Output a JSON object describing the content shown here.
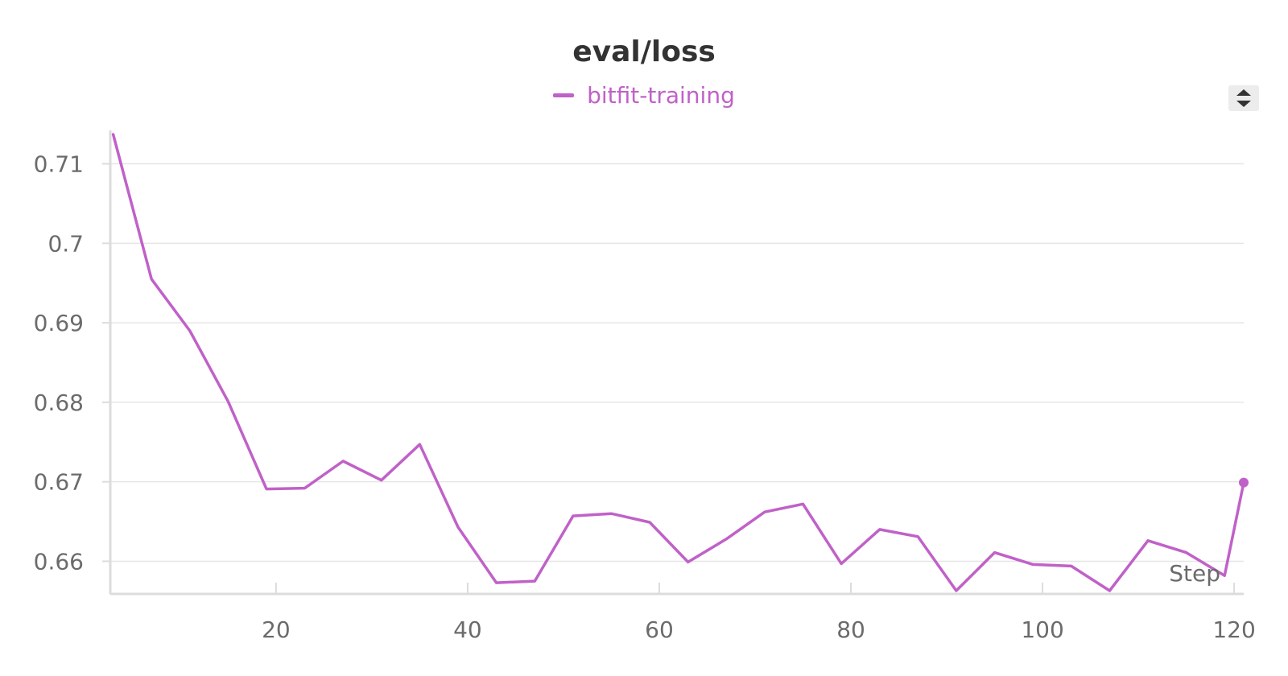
{
  "chart_data": {
    "type": "line",
    "title": "eval/loss",
    "xlabel": "Step",
    "ylabel": "",
    "xlim": [
      2.7,
      121
    ],
    "ylim": [
      0.6563,
      0.7137
    ],
    "x_ticks": [
      20,
      40,
      60,
      80,
      100,
      120
    ],
    "y_ticks": [
      0.66,
      0.67,
      0.68,
      0.69,
      0.7,
      0.71
    ],
    "grid": true,
    "legend": "top-center",
    "series": [
      {
        "name": "bitfit-training",
        "color": "#c061c8",
        "x": [
          3,
          7,
          11,
          15,
          19,
          23,
          27,
          31,
          35,
          39,
          43,
          47,
          51,
          55,
          59,
          63,
          67,
          71,
          75,
          79,
          83,
          87,
          91,
          95,
          99,
          103,
          107,
          111,
          115,
          119,
          121
        ],
        "y": [
          0.7137,
          0.6955,
          0.689,
          0.6801,
          0.6691,
          0.6692,
          0.6726,
          0.6702,
          0.6747,
          0.6643,
          0.6573,
          0.6575,
          0.6657,
          0.666,
          0.6649,
          0.6599,
          0.6628,
          0.6662,
          0.6672,
          0.6597,
          0.664,
          0.6631,
          0.6563,
          0.6611,
          0.6596,
          0.6594,
          0.6563,
          0.6626,
          0.6611,
          0.6582,
          0.6699
        ]
      }
    ]
  },
  "ui": {
    "sort_icon": "sort-arrows-icon"
  }
}
